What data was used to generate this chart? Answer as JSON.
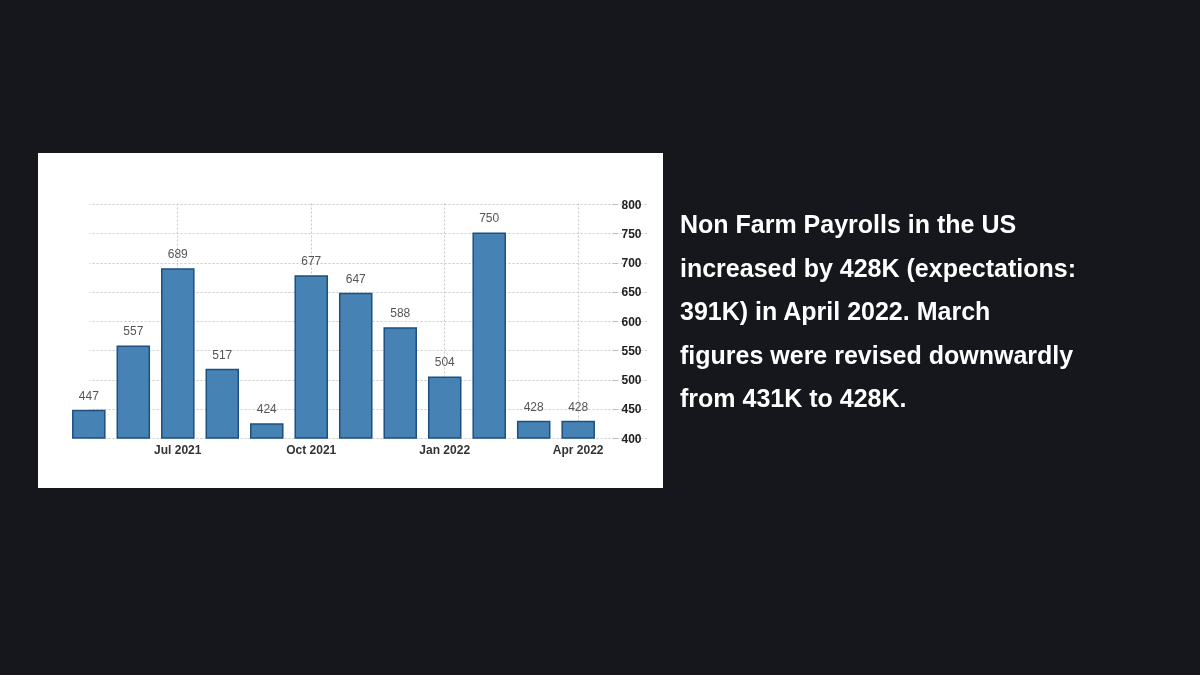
{
  "chart_data": {
    "type": "bar",
    "categories": [
      null,
      null,
      "Jul 2021",
      null,
      null,
      "Oct 2021",
      null,
      null,
      "Jan 2022",
      null,
      null,
      "Apr 2022"
    ],
    "values": [
      447,
      557,
      689,
      517,
      424,
      677,
      647,
      588,
      504,
      750,
      428,
      428
    ],
    "color": "#4682b4",
    "ylim": [
      400,
      800
    ],
    "yticks": [
      400,
      450,
      500,
      550,
      600,
      650,
      700,
      750,
      800
    ],
    "grid": true,
    "data_labels": true,
    "annotations": [
      "Non Farm Payrolls in the US increased by 428K (expectations: 391K) in April 2022. March figures were revised downwardly from 431K to 428K."
    ]
  }
}
